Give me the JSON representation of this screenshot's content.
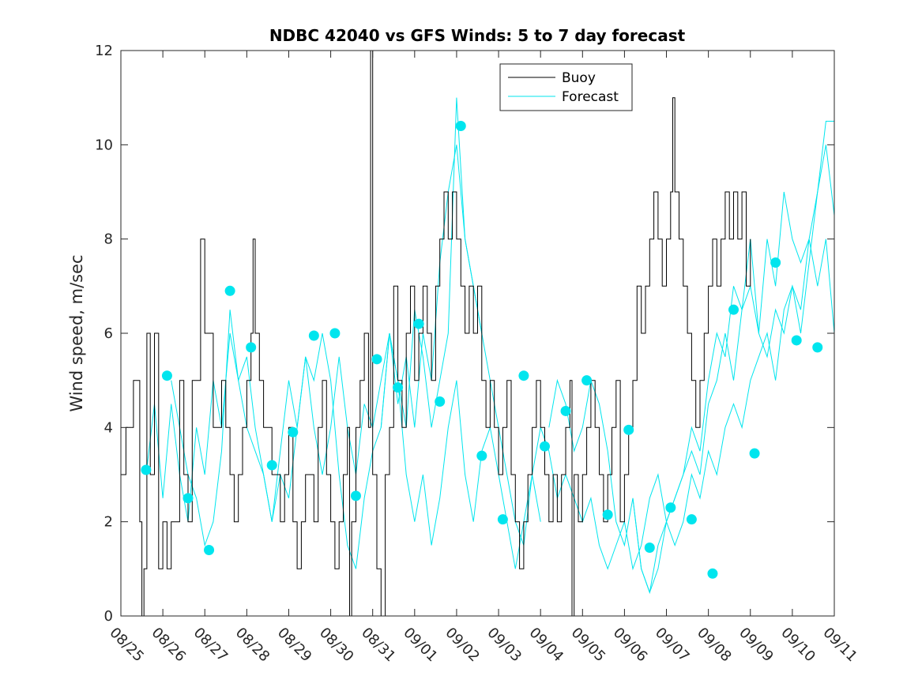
{
  "chart_data": {
    "type": "line",
    "title": "NDBC 42040 vs GFS Winds: 5 to 7 day forecast",
    "xlabel": "",
    "ylabel": "Wind speed, m/sec",
    "xlim": [
      0,
      17
    ],
    "ylim": [
      0,
      12
    ],
    "yticks": [
      0,
      2,
      4,
      6,
      8,
      10,
      12
    ],
    "xtick_labels": [
      "08/25",
      "08/26",
      "08/27",
      "08/28",
      "08/29",
      "08/30",
      "08/31",
      "09/01",
      "09/02",
      "09/03",
      "09/04",
      "09/05",
      "09/06",
      "09/07",
      "09/08",
      "09/09",
      "09/10",
      "09/11"
    ],
    "legend": [
      "Buoy",
      "Forecast"
    ],
    "legend_position": "top-center",
    "colors": {
      "buoy": "#000000",
      "forecast": "#00e5ee",
      "marker": "#00e5ee"
    },
    "buoy": [
      [
        0.0,
        3.0
      ],
      [
        0.12,
        4.0
      ],
      [
        0.3,
        5.0
      ],
      [
        0.45,
        2.0
      ],
      [
        0.5,
        0.0
      ],
      [
        0.55,
        1.0
      ],
      [
        0.62,
        6.0
      ],
      [
        0.7,
        3.0
      ],
      [
        0.8,
        6.0
      ],
      [
        0.9,
        1.0
      ],
      [
        1.0,
        2.0
      ],
      [
        1.1,
        1.0
      ],
      [
        1.2,
        2.0
      ],
      [
        1.3,
        2.0
      ],
      [
        1.4,
        5.0
      ],
      [
        1.5,
        3.0
      ],
      [
        1.6,
        2.0
      ],
      [
        1.7,
        5.0
      ],
      [
        1.8,
        5.0
      ],
      [
        1.9,
        8.0
      ],
      [
        2.0,
        6.0
      ],
      [
        2.1,
        6.0
      ],
      [
        2.2,
        4.0
      ],
      [
        2.3,
        4.0
      ],
      [
        2.4,
        5.0
      ],
      [
        2.5,
        4.0
      ],
      [
        2.6,
        3.0
      ],
      [
        2.7,
        2.0
      ],
      [
        2.8,
        3.0
      ],
      [
        2.9,
        4.0
      ],
      [
        3.0,
        5.0
      ],
      [
        3.1,
        6.0
      ],
      [
        3.15,
        8.0
      ],
      [
        3.2,
        6.0
      ],
      [
        3.3,
        5.0
      ],
      [
        3.4,
        4.0
      ],
      [
        3.5,
        4.0
      ],
      [
        3.6,
        3.0
      ],
      [
        3.7,
        3.0
      ],
      [
        3.8,
        2.0
      ],
      [
        3.9,
        3.0
      ],
      [
        4.0,
        4.0
      ],
      [
        4.1,
        2.0
      ],
      [
        4.2,
        1.0
      ],
      [
        4.3,
        2.0
      ],
      [
        4.4,
        3.0
      ],
      [
        4.5,
        3.0
      ],
      [
        4.6,
        2.0
      ],
      [
        4.7,
        4.0
      ],
      [
        4.8,
        5.0
      ],
      [
        4.9,
        3.0
      ],
      [
        5.0,
        2.0
      ],
      [
        5.1,
        1.0
      ],
      [
        5.2,
        2.0
      ],
      [
        5.3,
        3.0
      ],
      [
        5.4,
        4.0
      ],
      [
        5.45,
        0.0
      ],
      [
        5.5,
        2.0
      ],
      [
        5.6,
        4.0
      ],
      [
        5.7,
        5.0
      ],
      [
        5.8,
        6.0
      ],
      [
        5.9,
        4.0
      ],
      [
        5.95,
        12.0
      ],
      [
        6.0,
        3.0
      ],
      [
        6.1,
        1.0
      ],
      [
        6.2,
        0.0
      ],
      [
        6.3,
        3.0
      ],
      [
        6.4,
        4.0
      ],
      [
        6.5,
        7.0
      ],
      [
        6.6,
        5.0
      ],
      [
        6.7,
        4.0
      ],
      [
        6.8,
        6.0
      ],
      [
        6.9,
        7.0
      ],
      [
        7.0,
        5.0
      ],
      [
        7.1,
        6.0
      ],
      [
        7.2,
        7.0
      ],
      [
        7.3,
        6.0
      ],
      [
        7.4,
        5.0
      ],
      [
        7.5,
        7.0
      ],
      [
        7.6,
        8.0
      ],
      [
        7.7,
        9.0
      ],
      [
        7.8,
        8.0
      ],
      [
        7.9,
        9.0
      ],
      [
        8.0,
        8.0
      ],
      [
        8.1,
        7.0
      ],
      [
        8.2,
        6.0
      ],
      [
        8.3,
        7.0
      ],
      [
        8.4,
        6.0
      ],
      [
        8.5,
        7.0
      ],
      [
        8.6,
        5.0
      ],
      [
        8.7,
        4.0
      ],
      [
        8.8,
        5.0
      ],
      [
        8.9,
        4.0
      ],
      [
        9.0,
        3.0
      ],
      [
        9.1,
        4.0
      ],
      [
        9.2,
        5.0
      ],
      [
        9.3,
        3.0
      ],
      [
        9.4,
        2.0
      ],
      [
        9.5,
        1.0
      ],
      [
        9.6,
        2.0
      ],
      [
        9.7,
        3.0
      ],
      [
        9.8,
        4.0
      ],
      [
        9.9,
        5.0
      ],
      [
        10.0,
        4.0
      ],
      [
        10.1,
        3.0
      ],
      [
        10.2,
        2.0
      ],
      [
        10.3,
        3.0
      ],
      [
        10.4,
        2.0
      ],
      [
        10.5,
        3.0
      ],
      [
        10.6,
        4.0
      ],
      [
        10.7,
        5.0
      ],
      [
        10.75,
        0.0
      ],
      [
        10.8,
        3.0
      ],
      [
        10.9,
        2.0
      ],
      [
        11.0,
        3.0
      ],
      [
        11.1,
        4.0
      ],
      [
        11.2,
        5.0
      ],
      [
        11.3,
        4.0
      ],
      [
        11.4,
        3.0
      ],
      [
        11.5,
        2.0
      ],
      [
        11.6,
        3.0
      ],
      [
        11.7,
        4.0
      ],
      [
        11.8,
        5.0
      ],
      [
        11.9,
        2.0
      ],
      [
        12.0,
        3.0
      ],
      [
        12.1,
        4.0
      ],
      [
        12.2,
        5.0
      ],
      [
        12.3,
        7.0
      ],
      [
        12.4,
        6.0
      ],
      [
        12.5,
        7.0
      ],
      [
        12.6,
        8.0
      ],
      [
        12.7,
        9.0
      ],
      [
        12.8,
        8.0
      ],
      [
        12.9,
        7.0
      ],
      [
        13.0,
        8.0
      ],
      [
        13.1,
        9.0
      ],
      [
        13.15,
        11.0
      ],
      [
        13.2,
        9.0
      ],
      [
        13.3,
        8.0
      ],
      [
        13.4,
        7.0
      ],
      [
        13.5,
        6.0
      ],
      [
        13.6,
        5.0
      ],
      [
        13.7,
        4.0
      ],
      [
        13.8,
        5.0
      ],
      [
        13.9,
        6.0
      ],
      [
        14.0,
        7.0
      ],
      [
        14.1,
        8.0
      ],
      [
        14.2,
        7.0
      ],
      [
        14.3,
        8.0
      ],
      [
        14.4,
        9.0
      ],
      [
        14.5,
        8.0
      ],
      [
        14.6,
        9.0
      ],
      [
        14.7,
        8.0
      ],
      [
        14.8,
        9.0
      ],
      [
        14.9,
        7.0
      ],
      [
        15.0,
        8.0
      ]
    ],
    "forecast": [
      [
        [
          0.6,
          3.0
        ],
        [
          0.8,
          4.5
        ],
        [
          1.0,
          2.5
        ],
        [
          1.2,
          4.5
        ],
        [
          1.4,
          3.0
        ],
        [
          1.6,
          2.0
        ],
        [
          1.8,
          4.0
        ],
        [
          2.0,
          3.0
        ],
        [
          2.2,
          5.0
        ],
        [
          2.4,
          4.0
        ],
        [
          2.6,
          6.0
        ],
        [
          2.8,
          5.0
        ],
        [
          3.0,
          5.5
        ],
        [
          3.2,
          4.0
        ],
        [
          3.4,
          3.0
        ],
        [
          3.6,
          2.0
        ],
        [
          3.8,
          3.5
        ],
        [
          4.0,
          5.0
        ],
        [
          4.2,
          4.0
        ],
        [
          4.4,
          5.5
        ],
        [
          4.6,
          4.0
        ],
        [
          4.8,
          3.0
        ],
        [
          5.0,
          4.0
        ],
        [
          5.2,
          5.5
        ],
        [
          5.4,
          4.0
        ],
        [
          5.6,
          3.0
        ],
        [
          5.8,
          4.5
        ],
        [
          6.0,
          4.0
        ],
        [
          6.2,
          5.0
        ],
        [
          6.4,
          6.0
        ],
        [
          6.6,
          4.5
        ],
        [
          6.8,
          5.5
        ],
        [
          7.0,
          4.0
        ],
        [
          7.2,
          6.0
        ],
        [
          7.4,
          5.0
        ],
        [
          7.6,
          7.5
        ],
        [
          7.8,
          9.0
        ],
        [
          8.0,
          10.0
        ],
        [
          8.2,
          8.0
        ],
        [
          8.4,
          7.0
        ],
        [
          8.6,
          6.0
        ]
      ],
      [
        [
          1.2,
          5.0
        ],
        [
          1.4,
          4.0
        ],
        [
          1.6,
          3.0
        ],
        [
          1.8,
          2.5
        ],
        [
          2.0,
          1.5
        ],
        [
          2.2,
          2.0
        ],
        [
          2.4,
          3.5
        ],
        [
          2.6,
          6.5
        ],
        [
          2.8,
          5.0
        ],
        [
          3.0,
          4.0
        ],
        [
          3.2,
          3.5
        ],
        [
          3.4,
          3.0
        ],
        [
          3.6,
          2.0
        ],
        [
          3.8,
          3.0
        ],
        [
          4.0,
          2.5
        ],
        [
          4.2,
          4.0
        ],
        [
          4.4,
          5.5
        ],
        [
          4.6,
          5.0
        ],
        [
          4.8,
          6.0
        ],
        [
          5.0,
          5.0
        ],
        [
          5.2,
          3.0
        ],
        [
          5.4,
          1.5
        ],
        [
          5.6,
          1.0
        ],
        [
          5.8,
          2.5
        ],
        [
          6.0,
          3.5
        ],
        [
          6.2,
          4.0
        ],
        [
          6.4,
          6.0
        ],
        [
          6.6,
          5.0
        ],
        [
          6.8,
          4.0
        ],
        [
          7.0,
          6.5
        ],
        [
          7.2,
          5.5
        ],
        [
          7.4,
          4.0
        ],
        [
          7.6,
          5.0
        ],
        [
          7.8,
          6.0
        ],
        [
          8.0,
          11.0
        ],
        [
          8.2,
          8.0
        ],
        [
          8.4,
          7.0
        ],
        [
          8.6,
          6.0
        ],
        [
          8.8,
          5.0
        ],
        [
          9.0,
          4.0
        ],
        [
          9.2,
          3.0
        ],
        [
          9.4,
          2.0
        ],
        [
          9.6,
          1.5
        ],
        [
          9.8,
          3.0
        ],
        [
          10.0,
          2.0
        ]
      ],
      [
        [
          6.2,
          4.0
        ],
        [
          6.4,
          6.0
        ],
        [
          6.6,
          5.0
        ],
        [
          6.8,
          3.0
        ],
        [
          7.0,
          2.0
        ],
        [
          7.2,
          3.0
        ],
        [
          7.4,
          1.5
        ],
        [
          7.6,
          2.5
        ],
        [
          7.8,
          4.0
        ],
        [
          8.0,
          5.0
        ],
        [
          8.2,
          3.0
        ],
        [
          8.4,
          2.0
        ],
        [
          8.6,
          3.5
        ],
        [
          8.8,
          4.0
        ],
        [
          9.0,
          3.0
        ],
        [
          9.2,
          2.0
        ],
        [
          9.4,
          1.0
        ],
        [
          9.6,
          2.0
        ],
        [
          9.8,
          3.0
        ],
        [
          10.0,
          4.0
        ],
        [
          10.2,
          3.5
        ],
        [
          10.4,
          2.5
        ],
        [
          10.6,
          3.0
        ],
        [
          10.8,
          2.5
        ],
        [
          11.0,
          2.0
        ],
        [
          11.2,
          2.5
        ],
        [
          11.4,
          1.5
        ],
        [
          11.6,
          1.0
        ],
        [
          11.8,
          1.5
        ],
        [
          12.0,
          2.0
        ],
        [
          12.2,
          1.0
        ],
        [
          12.4,
          1.5
        ],
        [
          12.6,
          2.5
        ],
        [
          12.8,
          3.0
        ],
        [
          13.0,
          2.0
        ],
        [
          13.2,
          2.5
        ],
        [
          13.4,
          3.0
        ],
        [
          13.6,
          3.5
        ],
        [
          13.8,
          3.0
        ],
        [
          14.0,
          4.5
        ],
        [
          14.2,
          5.0
        ],
        [
          14.4,
          6.0
        ],
        [
          14.6,
          5.0
        ],
        [
          14.8,
          6.5
        ],
        [
          15.0,
          7.0
        ],
        [
          15.2,
          6.0
        ],
        [
          15.4,
          8.0
        ],
        [
          15.6,
          7.0
        ],
        [
          15.8,
          9.0
        ],
        [
          16.0,
          8.0
        ],
        [
          16.2,
          7.5
        ],
        [
          16.4,
          8.0
        ],
        [
          16.6,
          9.0
        ],
        [
          16.8,
          10.0
        ],
        [
          17.0,
          8.5
        ]
      ],
      [
        [
          10.2,
          4.0
        ],
        [
          10.4,
          5.0
        ],
        [
          10.6,
          4.5
        ],
        [
          10.8,
          3.5
        ],
        [
          11.0,
          4.0
        ],
        [
          11.2,
          5.0
        ],
        [
          11.4,
          4.5
        ],
        [
          11.6,
          3.5
        ],
        [
          11.8,
          2.0
        ],
        [
          12.0,
          1.5
        ],
        [
          12.2,
          2.5
        ],
        [
          12.4,
          1.0
        ],
        [
          12.6,
          0.5
        ],
        [
          12.8,
          1.5
        ],
        [
          13.0,
          2.0
        ],
        [
          13.2,
          2.5
        ],
        [
          13.4,
          3.0
        ],
        [
          13.6,
          4.0
        ],
        [
          13.8,
          3.5
        ],
        [
          14.0,
          5.0
        ],
        [
          14.2,
          6.0
        ],
        [
          14.4,
          5.5
        ],
        [
          14.6,
          7.0
        ],
        [
          14.8,
          6.5
        ],
        [
          15.0,
          8.0
        ],
        [
          15.2,
          6.0
        ],
        [
          15.4,
          5.5
        ],
        [
          15.6,
          6.5
        ],
        [
          15.8,
          6.0
        ],
        [
          16.0,
          7.0
        ],
        [
          16.2,
          6.5
        ],
        [
          16.4,
          8.0
        ],
        [
          16.6,
          7.0
        ],
        [
          16.8,
          8.0
        ],
        [
          17.0,
          6.0
        ]
      ],
      [
        [
          12.2,
          2.5
        ],
        [
          12.4,
          1.0
        ],
        [
          12.6,
          0.5
        ],
        [
          12.8,
          1.0
        ],
        [
          13.0,
          2.0
        ],
        [
          13.2,
          1.5
        ],
        [
          13.4,
          2.0
        ],
        [
          13.6,
          3.0
        ],
        [
          13.8,
          2.5
        ],
        [
          14.0,
          3.5
        ],
        [
          14.2,
          3.0
        ],
        [
          14.4,
          4.0
        ],
        [
          14.6,
          4.5
        ],
        [
          14.8,
          4.0
        ],
        [
          15.0,
          5.0
        ],
        [
          15.2,
          5.5
        ],
        [
          15.4,
          6.0
        ],
        [
          15.6,
          5.0
        ],
        [
          15.8,
          6.5
        ],
        [
          16.0,
          7.0
        ],
        [
          16.2,
          6.0
        ],
        [
          16.4,
          7.5
        ],
        [
          16.6,
          9.0
        ],
        [
          16.8,
          10.5
        ],
        [
          17.0,
          10.5
        ]
      ]
    ],
    "markers": [
      [
        0.6,
        3.1
      ],
      [
        1.1,
        5.1
      ],
      [
        1.6,
        2.5
      ],
      [
        2.1,
        1.4
      ],
      [
        2.6,
        6.9
      ],
      [
        3.1,
        5.7
      ],
      [
        3.6,
        3.2
      ],
      [
        4.1,
        3.9
      ],
      [
        4.6,
        5.95
      ],
      [
        5.1,
        6.0
      ],
      [
        5.6,
        2.55
      ],
      [
        6.1,
        5.45
      ],
      [
        6.6,
        4.85
      ],
      [
        7.1,
        6.2
      ],
      [
        7.6,
        4.55
      ],
      [
        8.1,
        10.4
      ],
      [
        8.6,
        3.4
      ],
      [
        9.1,
        2.05
      ],
      [
        9.6,
        5.1
      ],
      [
        10.1,
        3.6
      ],
      [
        10.6,
        4.35
      ],
      [
        11.1,
        5.0
      ],
      [
        11.6,
        2.15
      ],
      [
        12.1,
        3.95
      ],
      [
        12.6,
        1.45
      ],
      [
        13.1,
        2.3
      ],
      [
        13.6,
        2.05
      ],
      [
        14.1,
        0.9
      ],
      [
        14.6,
        6.5
      ],
      [
        15.1,
        3.45
      ],
      [
        15.6,
        7.5
      ],
      [
        16.1,
        5.85
      ],
      [
        16.6,
        5.7
      ]
    ]
  }
}
